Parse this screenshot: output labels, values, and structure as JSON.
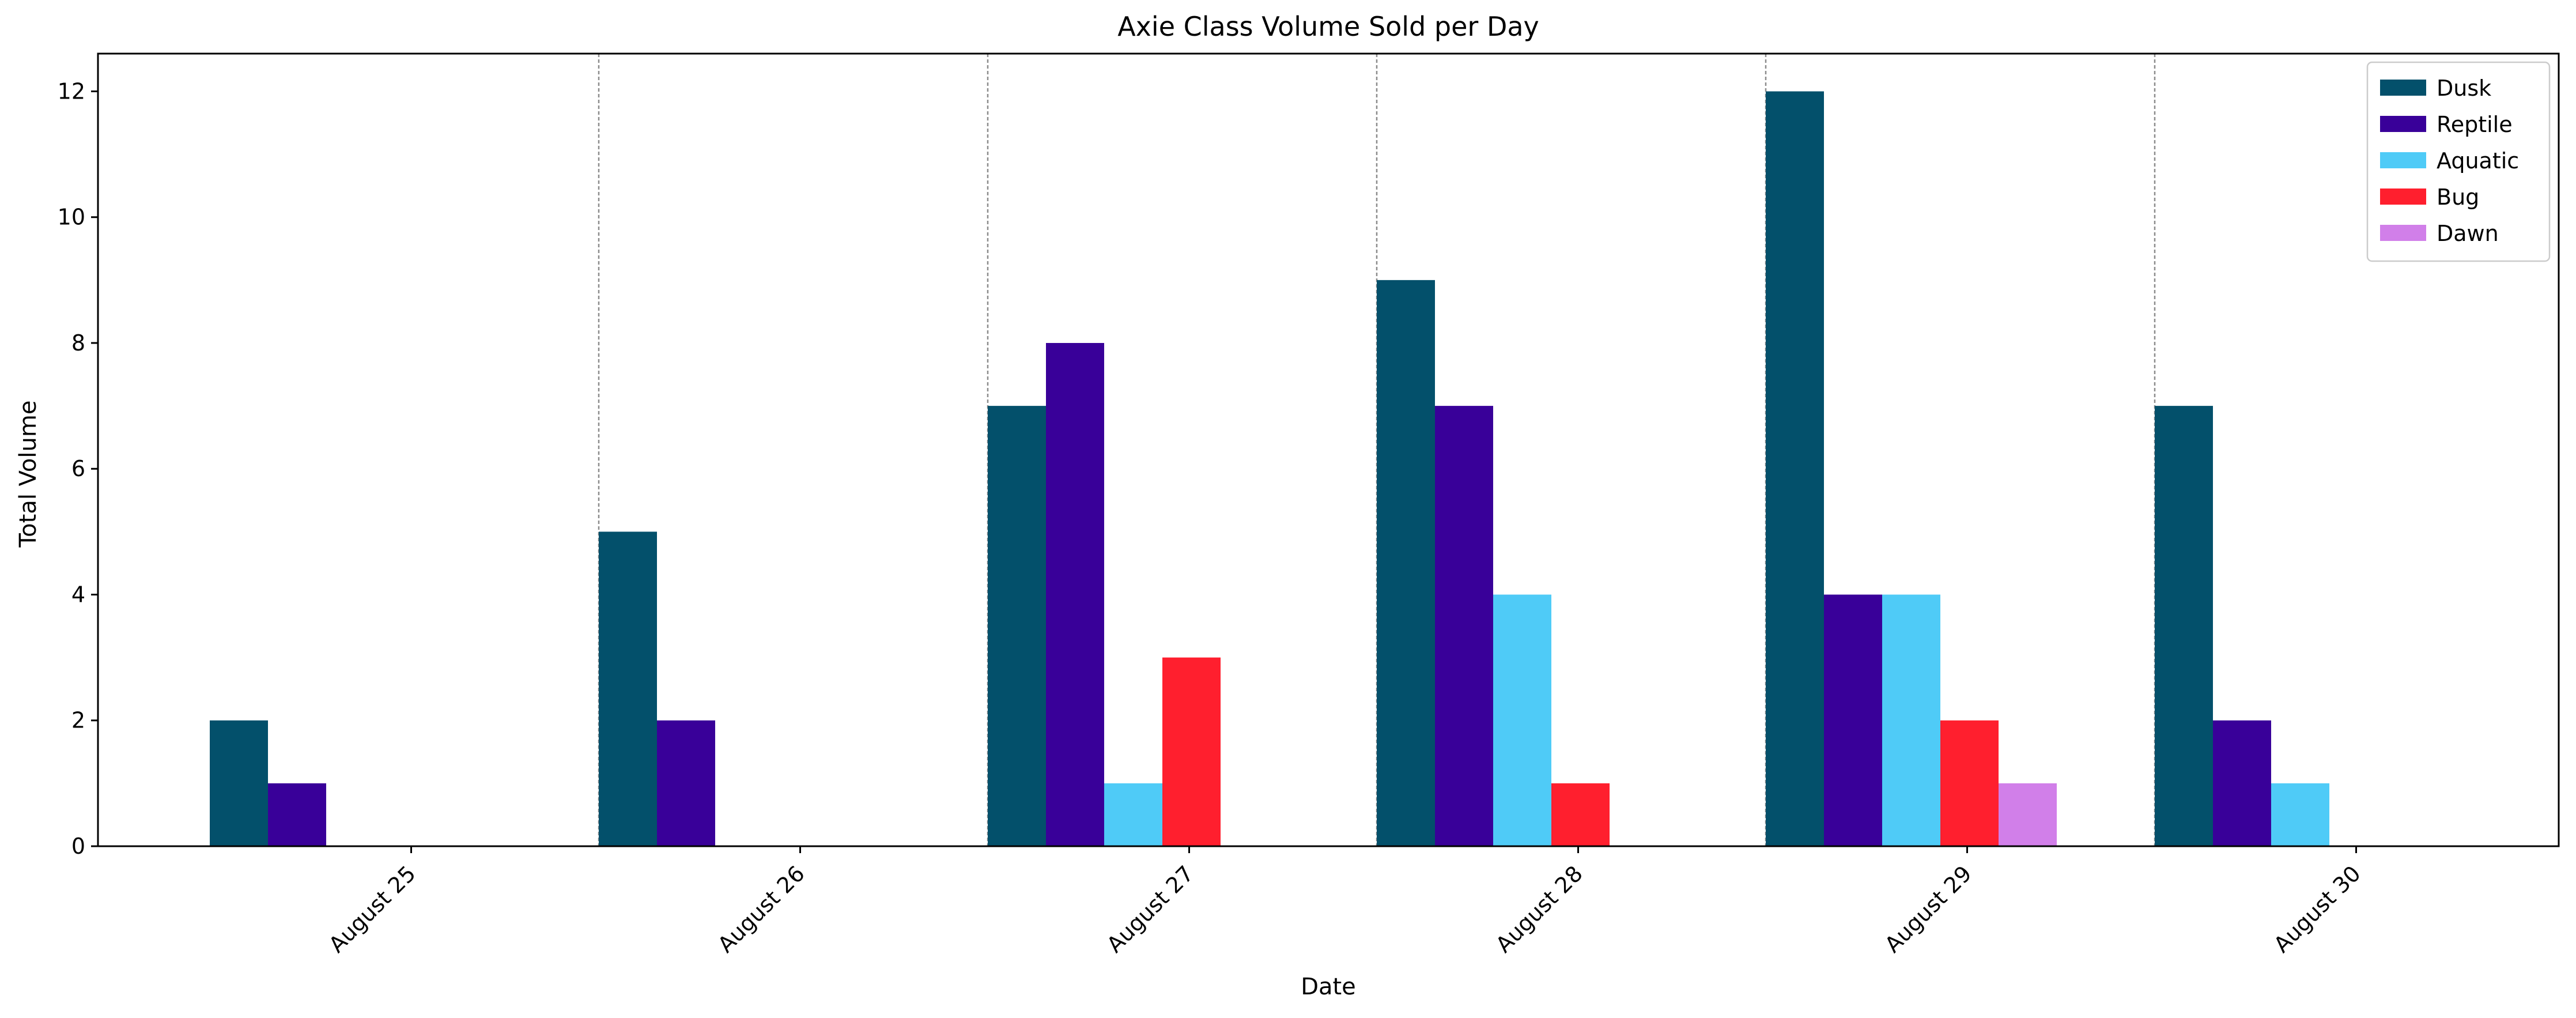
{
  "chart_data": {
    "type": "bar",
    "title": "Axie Class Volume Sold per Day",
    "xlabel": "Date",
    "ylabel": "Total Volume",
    "categories": [
      "August 25",
      "August 26",
      "August 27",
      "August 28",
      "August 29",
      "August 30"
    ],
    "yticks": [
      0,
      2,
      4,
      6,
      8,
      10,
      12
    ],
    "ylim": [
      0,
      12.6
    ],
    "legend_position": "top-right",
    "vertical_day_separators": true,
    "series": [
      {
        "name": "Dusk",
        "color": "#03506b",
        "values": [
          2,
          5,
          7,
          9,
          12,
          7
        ]
      },
      {
        "name": "Reptile",
        "color": "#390099",
        "values": [
          1,
          2,
          8,
          7,
          4,
          2
        ]
      },
      {
        "name": "Aquatic",
        "color": "#4fcbf7",
        "values": [
          0,
          0,
          1,
          4,
          4,
          1
        ]
      },
      {
        "name": "Bug",
        "color": "#ff1f2e",
        "values": [
          0,
          0,
          3,
          1,
          2,
          0
        ]
      },
      {
        "name": "Dawn",
        "color": "#d17fe9",
        "values": [
          0,
          0,
          0,
          0,
          1,
          0
        ]
      }
    ]
  }
}
